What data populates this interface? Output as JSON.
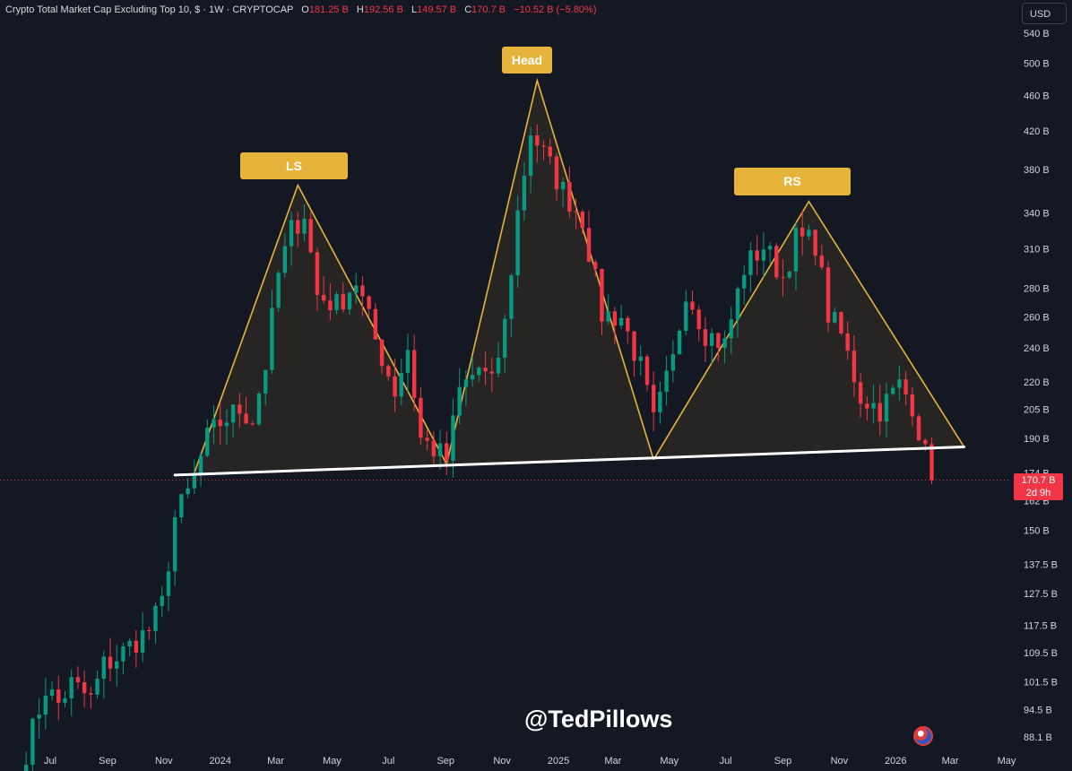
{
  "header": {
    "symbol": "Crypto Total Market Cap Excluding Top 10, $ · 1W · CRYPTOCAP",
    "o_label": "O",
    "o_value": "181.25 B",
    "h_label": "H",
    "h_value": "192.56 B",
    "l_label": "L",
    "l_value": "149.57 B",
    "c_label": "C",
    "c_value": "170.7 B",
    "change": "−10.52 B (−5.80%)"
  },
  "currency": "USD",
  "watermark": "@TedPillows",
  "price_tag": {
    "value": "170.7 B",
    "countdown": "2d 9h"
  },
  "colors": {
    "up": "#089981",
    "down": "#f23645",
    "background": "#141823",
    "pattern": "#e6b43a",
    "neckline": "#ffffff"
  },
  "chart_data": {
    "type": "candlestick",
    "y_scale": "log",
    "y_ticks": [
      {
        "v": 540,
        "label": "540 B"
      },
      {
        "v": 500,
        "label": "500 B"
      },
      {
        "v": 460,
        "label": "460 B"
      },
      {
        "v": 420,
        "label": "420 B"
      },
      {
        "v": 380,
        "label": "380 B"
      },
      {
        "v": 340,
        "label": "340 B"
      },
      {
        "v": 310,
        "label": "310 B"
      },
      {
        "v": 280,
        "label": "280 B"
      },
      {
        "v": 260,
        "label": "260 B"
      },
      {
        "v": 240,
        "label": "240 B"
      },
      {
        "v": 220,
        "label": "220 B"
      },
      {
        "v": 205,
        "label": "205 B"
      },
      {
        "v": 190,
        "label": "190 B"
      },
      {
        "v": 174,
        "label": "174 B"
      },
      {
        "v": 162,
        "label": "162 B"
      },
      {
        "v": 150,
        "label": "150 B"
      },
      {
        "v": 137.5,
        "label": "137.5 B"
      },
      {
        "v": 127.5,
        "label": "127.5 B"
      },
      {
        "v": 117.5,
        "label": "117.5 B"
      },
      {
        "v": 109.5,
        "label": "109.5 B"
      },
      {
        "v": 101.5,
        "label": "101.5 B"
      },
      {
        "v": 94.5,
        "label": "94.5 B"
      },
      {
        "v": 88.1,
        "label": "88.1 B"
      }
    ],
    "x_ticks": [
      {
        "date": "2023-07-01",
        "label": "Jul"
      },
      {
        "date": "2023-09-01",
        "label": "Sep"
      },
      {
        "date": "2023-11-01",
        "label": "Nov"
      },
      {
        "date": "2024-01-01",
        "label": "2024"
      },
      {
        "date": "2024-03-01",
        "label": "Mar"
      },
      {
        "date": "2024-05-01",
        "label": "May"
      },
      {
        "date": "2024-07-01",
        "label": "Jul"
      },
      {
        "date": "2024-09-01",
        "label": "Sep"
      },
      {
        "date": "2024-11-01",
        "label": "Nov"
      },
      {
        "date": "2025-01-01",
        "label": "2025"
      },
      {
        "date": "2025-03-01",
        "label": "Mar"
      },
      {
        "date": "2025-05-01",
        "label": "May"
      },
      {
        "date": "2025-07-01",
        "label": "Jul"
      },
      {
        "date": "2025-09-01",
        "label": "Sep"
      },
      {
        "date": "2025-11-01",
        "label": "Nov"
      },
      {
        "date": "2026-01-01",
        "label": "2026"
      },
      {
        "date": "2026-03-01",
        "label": "Mar"
      },
      {
        "date": "2026-05-01",
        "label": "May"
      }
    ],
    "last_price": 170.7,
    "path": [
      [
        "2023-06-05",
        85
      ],
      [
        "2023-06-26",
        100
      ],
      [
        "2023-07-10",
        96
      ],
      [
        "2023-07-24",
        101
      ],
      [
        "2023-08-14",
        97
      ],
      [
        "2023-08-28",
        106
      ],
      [
        "2023-09-11",
        108
      ],
      [
        "2023-10-02",
        113
      ],
      [
        "2023-10-16",
        116
      ],
      [
        "2023-10-30",
        124
      ],
      [
        "2023-11-13",
        155
      ],
      [
        "2023-11-27",
        165
      ],
      [
        "2023-12-04",
        172
      ],
      [
        "2023-12-18",
        190
      ],
      [
        "2024-01-01",
        198
      ],
      [
        "2024-01-22",
        205
      ],
      [
        "2024-02-05",
        200
      ],
      [
        "2024-02-19",
        230
      ],
      [
        "2024-03-04",
        290
      ],
      [
        "2024-03-18",
        325
      ],
      [
        "2024-04-01",
        340
      ],
      [
        "2024-04-15",
        275
      ],
      [
        "2024-05-06",
        268
      ],
      [
        "2024-05-27",
        285
      ],
      [
        "2024-06-17",
        245
      ],
      [
        "2024-07-08",
        215
      ],
      [
        "2024-07-22",
        240
      ],
      [
        "2024-08-05",
        190
      ],
      [
        "2024-08-19",
        185
      ],
      [
        "2024-09-02",
        180
      ],
      [
        "2024-09-16",
        215
      ],
      [
        "2024-10-07",
        228
      ],
      [
        "2024-10-21",
        218
      ],
      [
        "2024-11-04",
        255
      ],
      [
        "2024-11-18",
        340
      ],
      [
        "2024-12-02",
        420
      ],
      [
        "2024-12-16",
        395
      ],
      [
        "2025-01-06",
        360
      ],
      [
        "2025-01-27",
        335
      ],
      [
        "2025-02-17",
        262
      ],
      [
        "2025-03-10",
        260
      ],
      [
        "2025-03-31",
        228
      ],
      [
        "2025-04-14",
        198
      ],
      [
        "2025-05-05",
        232
      ],
      [
        "2025-05-19",
        280
      ],
      [
        "2025-06-09",
        250
      ],
      [
        "2025-06-30",
        242
      ],
      [
        "2025-07-21",
        295
      ],
      [
        "2025-08-11",
        312
      ],
      [
        "2025-09-01",
        288
      ],
      [
        "2025-09-15",
        318
      ],
      [
        "2025-10-06",
        315
      ],
      [
        "2025-10-20",
        262
      ],
      [
        "2025-11-03",
        248
      ],
      [
        "2025-11-24",
        212
      ],
      [
        "2025-12-15",
        205
      ],
      [
        "2026-01-05",
        218
      ],
      [
        "2026-01-19",
        208
      ],
      [
        "2026-02-02",
        182
      ],
      [
        "2026-02-09",
        170.7
      ]
    ],
    "pattern": {
      "labels": [
        "LS",
        "Head",
        "RS"
      ],
      "neckline": [
        [
          "2023-11-13",
          173
        ],
        [
          "2026-03-16",
          186
        ]
      ],
      "ls": [
        [
          "2023-12-04",
          174
        ],
        [
          "2024-03-25",
          365
        ],
        [
          "2024-09-02",
          178
        ]
      ],
      "head": [
        [
          "2024-09-02",
          178
        ],
        [
          "2024-12-09",
          478
        ],
        [
          "2025-04-14",
          180
        ]
      ],
      "rs": [
        [
          "2025-04-14",
          180
        ],
        [
          "2025-09-29",
          350
        ],
        [
          "2026-03-16",
          186
        ]
      ]
    }
  }
}
